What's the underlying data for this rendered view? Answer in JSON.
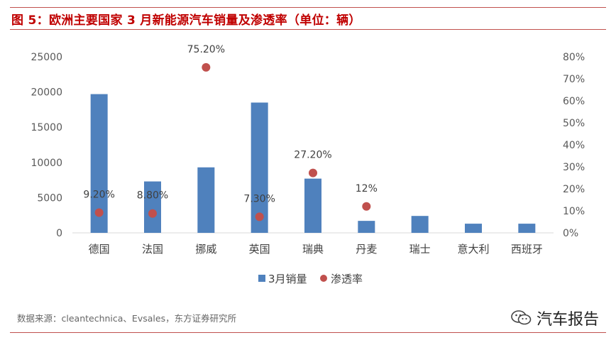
{
  "header": {
    "title": "图 5：欧洲主要国家 3 月新能源汽车销量及渗透率（单位：辆）"
  },
  "footer": {
    "source": "数据来源：cleantechnica、Evsales，东方证券研究所",
    "watermark": "汽车报告"
  },
  "chart_data": {
    "type": "bar",
    "categories": [
      "德国",
      "法国",
      "挪威",
      "英国",
      "瑞典",
      "丹麦",
      "瑞士",
      "意大利",
      "西班牙"
    ],
    "series": [
      {
        "name": "3月销量",
        "type": "bar",
        "axis": "left",
        "color": "#4f81bd",
        "values": [
          19700,
          7300,
          9300,
          18500,
          7700,
          1700,
          2400,
          1300,
          1300
        ]
      },
      {
        "name": "渗透率",
        "type": "scatter",
        "axis": "right",
        "color": "#c0504d",
        "values": [
          9.2,
          8.8,
          75.2,
          7.3,
          27.2,
          12.0,
          null,
          null,
          null
        ],
        "labels": [
          "9.20%",
          "8.80%",
          "75.20%",
          "7.30%",
          "27.20%",
          "12%",
          null,
          null,
          null
        ]
      }
    ],
    "y_left": {
      "ylim": [
        0,
        25000
      ],
      "ticks": [
        "0",
        "5000",
        "10000",
        "15000",
        "20000",
        "25000"
      ]
    },
    "y_right": {
      "ylim": [
        0,
        80
      ],
      "ticks": [
        "0%",
        "10%",
        "20%",
        "30%",
        "40%",
        "50%",
        "60%",
        "70%",
        "80%"
      ]
    },
    "grid": false,
    "legend": "bottom-center"
  }
}
